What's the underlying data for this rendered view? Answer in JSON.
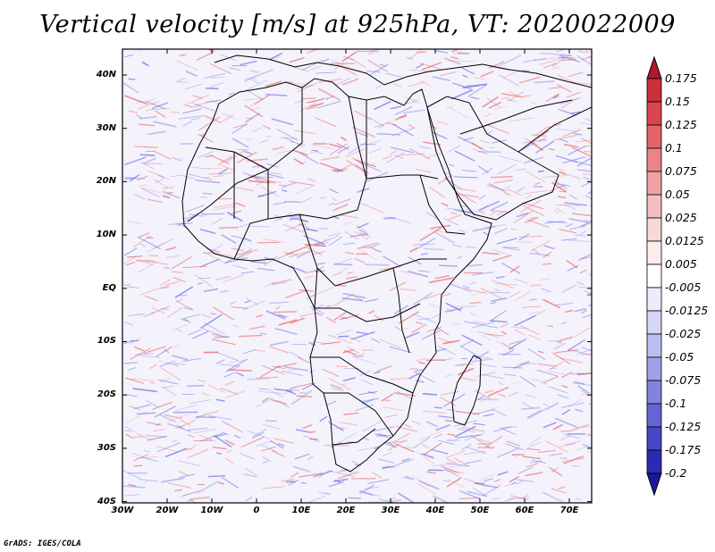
{
  "title": "Vertical velocity [m/s] at 925hPa, VT: 2020022009",
  "credit": "GrADS: IGES/COLA",
  "lat_labels": [
    "40N",
    "30N",
    "20N",
    "10N",
    "EQ",
    "10S",
    "20S",
    "30S",
    "40S"
  ],
  "lon_labels": [
    "30W",
    "20W",
    "10W",
    "0",
    "10E",
    "20E",
    "30E",
    "40E",
    "50E",
    "60E",
    "70E"
  ],
  "colorbar": {
    "levels": [
      "0.175",
      "0.15",
      "0.125",
      "0.1",
      "0.075",
      "0.05",
      "0.025",
      "0.0125",
      "0.005",
      "-0.005",
      "-0.0125",
      "-0.025",
      "-0.05",
      "-0.075",
      "-0.1",
      "-0.125",
      "-0.175",
      "-0.2"
    ],
    "colors": [
      "#b2182b",
      "#c8303a",
      "#d8454e",
      "#e2636a",
      "#ea8488",
      "#efa2a5",
      "#f4bfc1",
      "#f8d8da",
      "#fcecec",
      "#ffffff",
      "#ececfc",
      "#d6d6f7",
      "#bcbcf0",
      "#a0a0e8",
      "#8282df",
      "#6464d4",
      "#4646c6",
      "#2b2bb2",
      "#1a1a99"
    ]
  },
  "field_colors": {
    "positive": "#e65a5a",
    "negative": "#6a6ae6",
    "coastline": "#000000"
  }
}
